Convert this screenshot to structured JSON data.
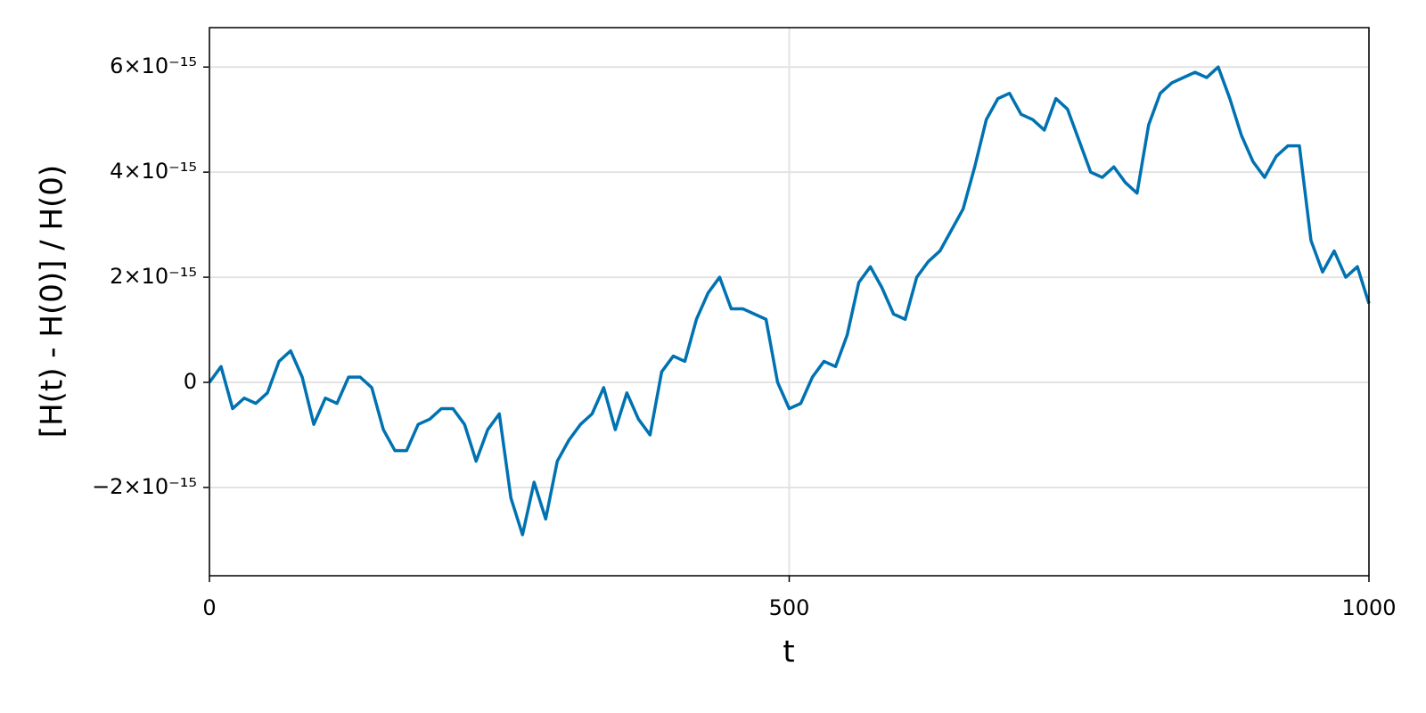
{
  "chart_data": {
    "type": "line",
    "x_label": "t",
    "y_label": "[H(t) - H(0)] / H(0)",
    "x": [
      0,
      10,
      20,
      30,
      40,
      50,
      60,
      70,
      80,
      90,
      100,
      110,
      120,
      130,
      140,
      150,
      160,
      170,
      180,
      190,
      200,
      210,
      220,
      230,
      240,
      250,
      260,
      270,
      280,
      290,
      300,
      310,
      320,
      330,
      340,
      350,
      360,
      370,
      380,
      390,
      400,
      410,
      420,
      430,
      440,
      450,
      460,
      470,
      480,
      490,
      500,
      510,
      520,
      530,
      540,
      550,
      560,
      570,
      580,
      590,
      600,
      610,
      620,
      630,
      640,
      650,
      660,
      670,
      680,
      690,
      700,
      710,
      720,
      730,
      740,
      750,
      760,
      770,
      780,
      790,
      800,
      810,
      820,
      830,
      840,
      850,
      860,
      870,
      880,
      890,
      900,
      910,
      920,
      930,
      940,
      950,
      960,
      970,
      980,
      990,
      1000
    ],
    "series": [
      {
        "color": "#0072b2",
        "values": [
          0,
          3e-16,
          -5e-16,
          -3e-16,
          -4e-16,
          -2e-16,
          4e-16,
          6e-16,
          1e-16,
          -8e-16,
          -3e-16,
          -4e-16,
          1e-16,
          1e-16,
          -1e-16,
          -9e-16,
          -1.3e-15,
          -1.3e-15,
          -8e-16,
          -7e-16,
          -5e-16,
          -5e-16,
          -8e-16,
          -1.5e-15,
          -9e-16,
          -6e-16,
          -2.2e-15,
          -2.9e-15,
          -1.9e-15,
          -2.6e-15,
          -1.5e-15,
          -1.1e-15,
          -8e-16,
          -6e-16,
          -1e-16,
          -9e-16,
          -2e-16,
          -7e-16,
          -1e-15,
          2e-16,
          5e-16,
          4e-16,
          1.2e-15,
          1.7e-15,
          2e-15,
          1.4e-15,
          1.4e-15,
          1.3e-15,
          1.2e-15,
          0,
          -5e-16,
          -4e-16,
          1e-16,
          4e-16,
          3e-16,
          9e-16,
          1.9e-15,
          2.2e-15,
          1.8e-15,
          1.3e-15,
          1.2e-15,
          2e-15,
          2.3e-15,
          2.5e-15,
          2.9e-15,
          3.3e-15,
          4.1e-15,
          5e-15,
          5.4e-15,
          5.5e-15,
          5.1e-15,
          5e-15,
          4.8e-15,
          5.4e-15,
          5.2e-15,
          4.6e-15,
          4e-15,
          3.9e-15,
          4.1e-15,
          3.8e-15,
          3.6e-15,
          4.9e-15,
          5.5e-15,
          5.7e-15,
          5.8e-15,
          5.9e-15,
          5.8e-15,
          6e-15,
          5.4e-15,
          4.7e-15,
          4.2e-15,
          3.9e-15,
          4.3e-15,
          4.5e-15,
          4.5e-15,
          2.7e-15,
          2.1e-15,
          2.5e-15,
          2e-15,
          2.2e-15,
          1.5e-15
        ]
      }
    ],
    "xlim": [
      0,
      1000
    ],
    "xticks": [
      0,
      500,
      1000
    ],
    "ylim": [
      -3.68e-15,
      6.75e-15
    ],
    "yticks": [
      {
        "value": -2e-15,
        "label": "−2×10⁻¹⁵"
      },
      0,
      {
        "value": 2e-15,
        "label": "2×10⁻¹⁵"
      },
      {
        "value": 4e-15,
        "label": "4×10⁻¹⁵"
      },
      {
        "value": 6e-15,
        "label": "6×10⁻¹⁵"
      }
    ],
    "grid": true
  }
}
